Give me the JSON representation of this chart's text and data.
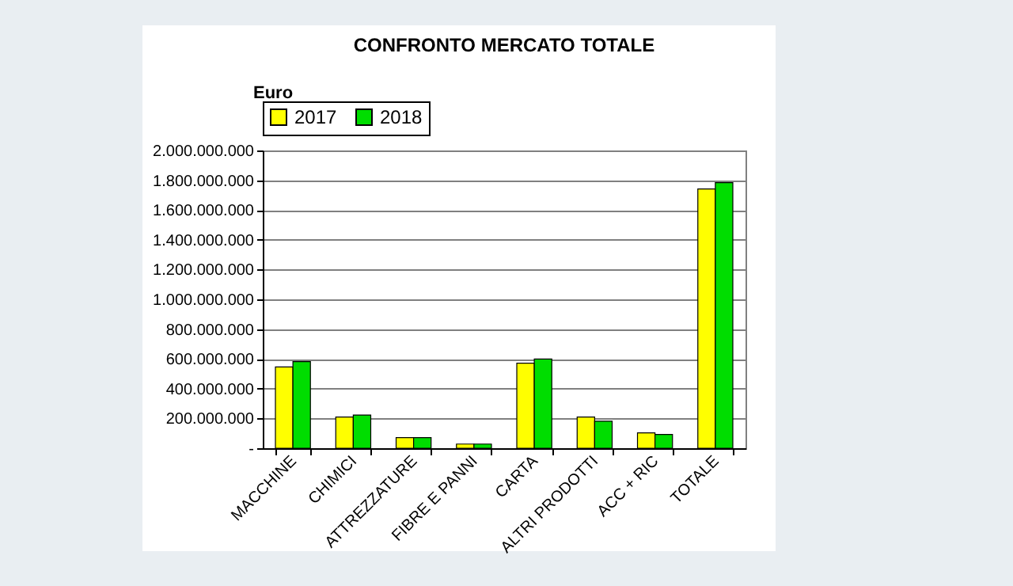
{
  "chart_data": {
    "type": "bar",
    "title": "CONFRONTO MERCATO TOTALE",
    "ylabel": "Euro",
    "categories": [
      "MACCHINE",
      "CHIMICI",
      "ATTREZZATURE",
      "FIBRE E PANNI",
      "CARTA",
      "ALTRI PRODOTTI",
      "ACC + RIC",
      "TOTALE"
    ],
    "series": [
      {
        "name": "2017",
        "color": "#ffff00",
        "values": [
          546000000,
          209000000,
          71000000,
          28000000,
          571000000,
          209000000,
          103000000,
          1741000000
        ]
      },
      {
        "name": "2018",
        "color": "#00dd00",
        "values": [
          582000000,
          223000000,
          71000000,
          28000000,
          599000000,
          181000000,
          92000000,
          1784000000
        ]
      }
    ],
    "ylim": [
      0,
      2000000000
    ],
    "yticks": [
      {
        "value": 0,
        "label": "-"
      },
      {
        "value": 200000000,
        "label": "200.000.000"
      },
      {
        "value": 400000000,
        "label": "400.000.000"
      },
      {
        "value": 600000000,
        "label": "600.000.000"
      },
      {
        "value": 800000000,
        "label": "800.000.000"
      },
      {
        "value": 1000000000,
        "label": "1.000.000.000"
      },
      {
        "value": 1200000000,
        "label": "1.200.000.000"
      },
      {
        "value": 1400000000,
        "label": "1.400.000.000"
      },
      {
        "value": 1600000000,
        "label": "1.600.000.000"
      },
      {
        "value": 1800000000,
        "label": "1.800.000.000"
      },
      {
        "value": 2000000000,
        "label": "2.000.000.000"
      }
    ],
    "grid": "y",
    "legend": "top"
  }
}
